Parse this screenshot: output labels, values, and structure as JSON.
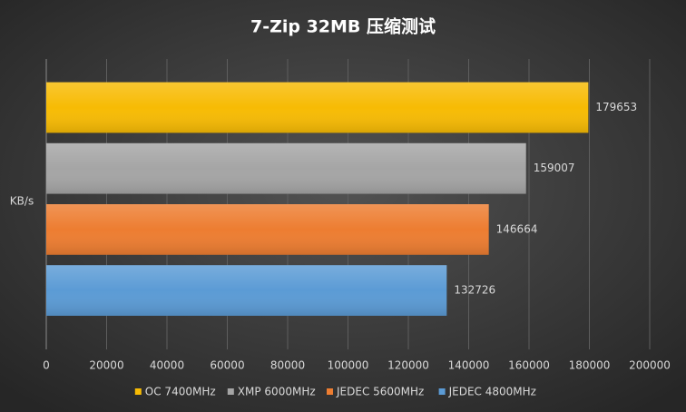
{
  "chart_data": {
    "type": "bar",
    "orientation": "horizontal",
    "title": "7-Zip  32MB 压缩测试",
    "ylabel": "KB/s",
    "categories": [
      null
    ],
    "series": [
      {
        "name": "OC 7400MHz",
        "color": "#f7bb04",
        "values": [
          179653
        ]
      },
      {
        "name": "XMP 6000MHz",
        "color": "#a5a5a5",
        "values": [
          159007
        ]
      },
      {
        "name": "JEDEC 5600MHz",
        "color": "#ed7d31",
        "values": [
          146664
        ]
      },
      {
        "name": "JEDEC 4800MHz",
        "color": "#5b9bd5",
        "values": [
          132726
        ]
      }
    ],
    "xlim": [
      0,
      200000
    ],
    "xticks": [
      0,
      20000,
      40000,
      60000,
      80000,
      100000,
      120000,
      140000,
      160000,
      180000,
      200000
    ],
    "grid": true,
    "legend": "bottom"
  }
}
